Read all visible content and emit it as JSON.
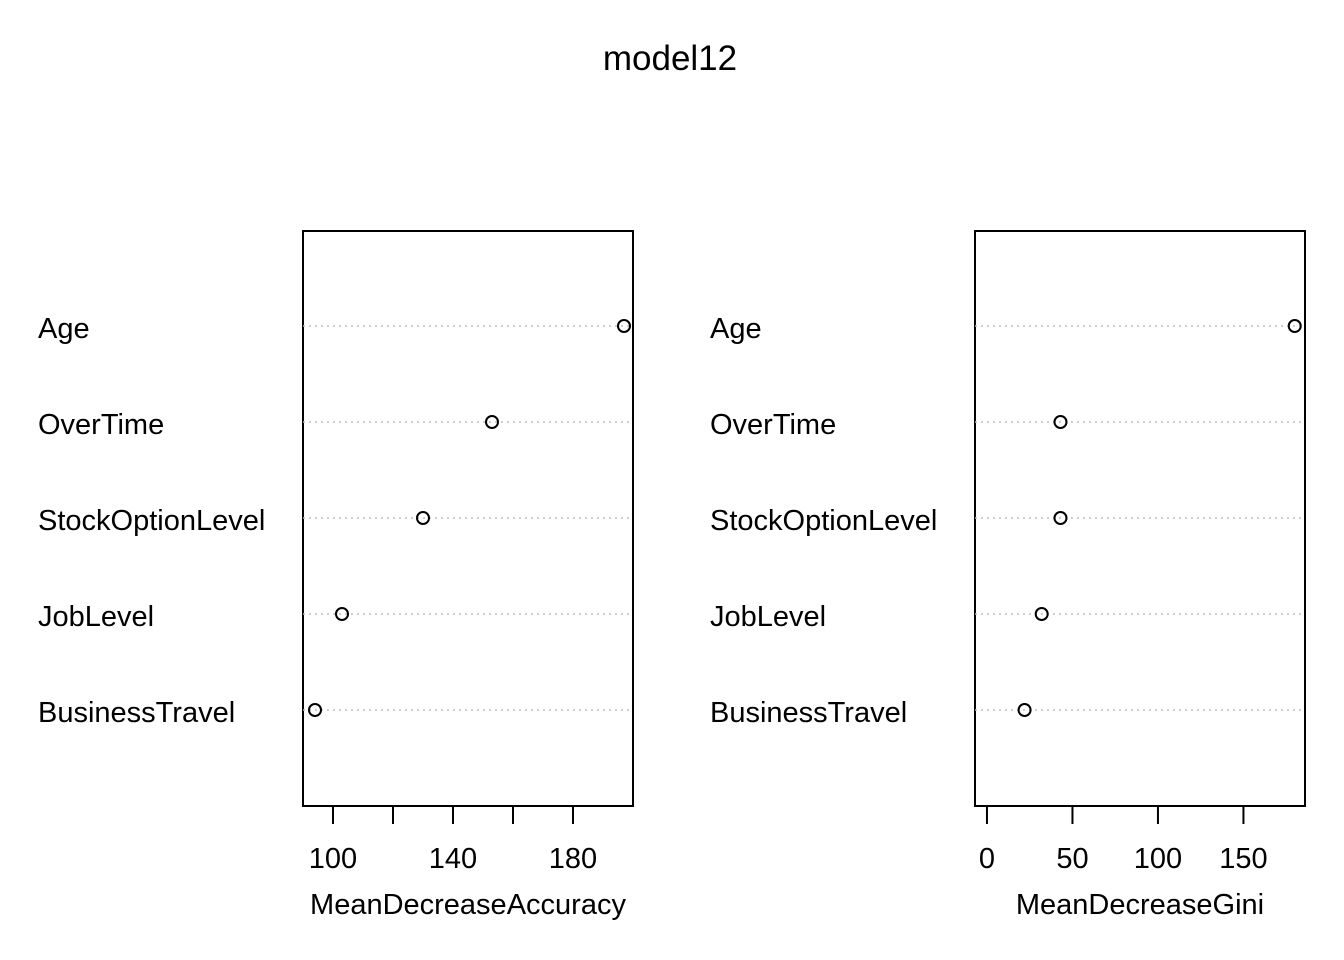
{
  "title": "model12",
  "chart_data": [
    {
      "type": "scatter",
      "variant": "dotchart",
      "categories": [
        "Age",
        "OverTime",
        "StockOptionLevel",
        "JobLevel",
        "BusinessTravel"
      ],
      "values": [
        197,
        153,
        130,
        103,
        94
      ],
      "xlabel": "MeanDecreaseAccuracy",
      "xlim": [
        90,
        200
      ],
      "xticks": [
        100,
        120,
        140,
        160,
        180
      ],
      "xtick_labels": [
        "100",
        "",
        "140",
        "",
        "180"
      ],
      "grid": "dotted-horizontal"
    },
    {
      "type": "scatter",
      "variant": "dotchart",
      "categories": [
        "Age",
        "OverTime",
        "StockOptionLevel",
        "JobLevel",
        "BusinessTravel"
      ],
      "values": [
        180,
        43,
        43,
        32,
        22
      ],
      "xlabel": "MeanDecreaseGini",
      "xlim": [
        -7,
        186
      ],
      "xticks": [
        0,
        50,
        100,
        150
      ],
      "xtick_labels": [
        "0",
        "50",
        "100",
        "150"
      ],
      "grid": "dotted-horizontal"
    }
  ]
}
